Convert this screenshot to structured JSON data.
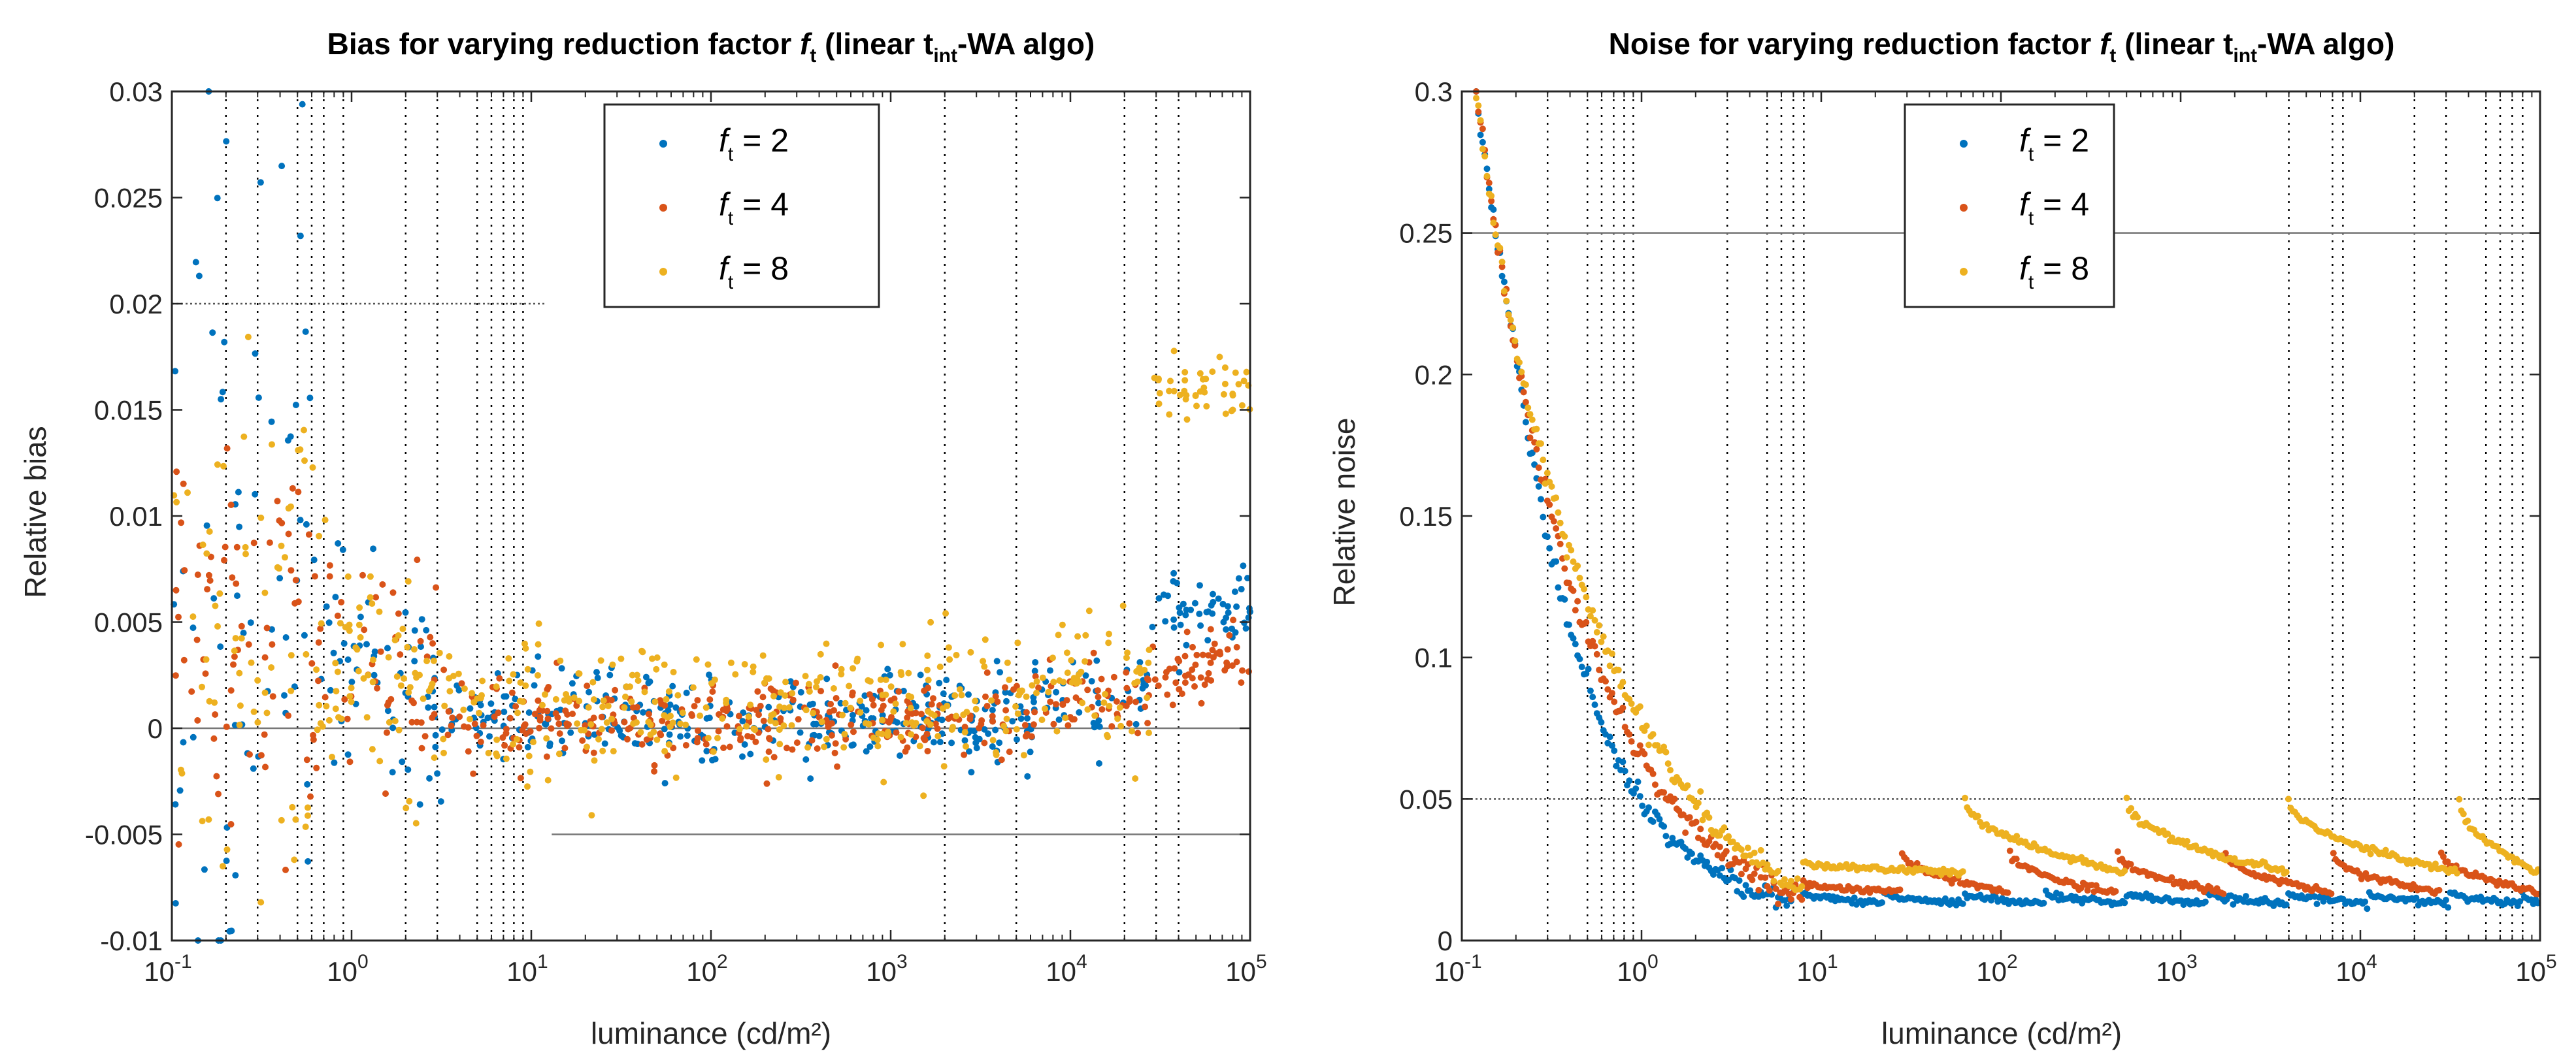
{
  "chart_data": [
    {
      "type": "scatter",
      "title_main": "Bias for varying reduction factor ",
      "title_f": "f",
      "title_f_sub": "t",
      "title_mid": " (linear t",
      "title_int_sub": "int",
      "title_end": "-WA algo)",
      "xlabel": "luminance (cd/m²)",
      "ylabel": "Relative bias",
      "xscale": "log",
      "xlim": [
        0.1,
        100000
      ],
      "ylim": [
        -0.01,
        0.03
      ],
      "x_ticks": [
        0.1,
        1,
        10,
        100,
        1000,
        10000,
        100000
      ],
      "x_tick_labels": [
        "10",
        "10",
        "10",
        "10",
        "10",
        "10",
        "10"
      ],
      "x_tick_exponents": [
        "-1",
        "0",
        "1",
        "2",
        "3",
        "4",
        "5"
      ],
      "y_ticks": [
        -0.01,
        -0.005,
        0,
        0.005,
        0.01,
        0.015,
        0.02,
        0.025,
        0.03
      ],
      "y_tick_labels": [
        "-0.01",
        "-0.005",
        "0",
        "0.005",
        "0.01",
        "0.015",
        "0.02",
        "0.025",
        "0.03"
      ],
      "vlines": [
        0.2,
        0.3,
        0.5,
        0.6,
        0.7,
        0.9,
        2,
        3,
        5,
        6,
        7,
        8,
        9,
        2000,
        5000,
        20000,
        30000,
        40000
      ],
      "hlines": [
        {
          "y": 0.02,
          "x_from": 0.1,
          "x_to": 12,
          "style": "dotted"
        },
        {
          "y": 0,
          "x_from": 0.1,
          "x_to": 100000,
          "style": "solid"
        },
        {
          "y": -0.005,
          "x_from": 13,
          "x_to": 100000,
          "style": "solid"
        }
      ],
      "legend_position": "top-center",
      "series": [
        {
          "name": "f_t = 2",
          "label_f": "f",
          "label_sub": "t",
          "label_rest": " = 2",
          "color": "#0072BD",
          "plateau_value": 0.0055
        },
        {
          "name": "f_t = 4",
          "label_f": "f",
          "label_sub": "t",
          "label_rest": " = 4",
          "color": "#D95319",
          "plateau_value": 0.003
        },
        {
          "name": "f_t = 8",
          "label_f": "f",
          "label_sub": "t",
          "label_rest": " = 8",
          "color": "#EDB120",
          "plateau_value": 0.016
        }
      ]
    },
    {
      "type": "scatter",
      "title_main": "Noise for varying reduction factor ",
      "title_f": "f",
      "title_f_sub": "t",
      "title_mid": " (linear t",
      "title_int_sub": "int",
      "title_end": "-WA algo)",
      "xlabel": "luminance (cd/m²)",
      "ylabel": "Relative noise",
      "xscale": "log",
      "xlim": [
        0.1,
        100000
      ],
      "ylim": [
        0,
        0.3
      ],
      "x_ticks": [
        0.1,
        1,
        10,
        100,
        1000,
        10000,
        100000
      ],
      "x_tick_labels": [
        "10",
        "10",
        "10",
        "10",
        "10",
        "10",
        "10"
      ],
      "x_tick_exponents": [
        "-1",
        "0",
        "1",
        "2",
        "3",
        "4",
        "5"
      ],
      "y_ticks": [
        0,
        0.05,
        0.1,
        0.15,
        0.2,
        0.25,
        0.3
      ],
      "y_tick_labels": [
        "0",
        "0.05",
        "0.1",
        "0.15",
        "0.2",
        "0.25",
        "0.3"
      ],
      "vlines": [
        0.3,
        0.5,
        0.6,
        0.7,
        0.8,
        0.9,
        3,
        5,
        6,
        7,
        8,
        4000,
        7000,
        8000,
        20000,
        30000,
        50000,
        60000,
        70000,
        80000
      ],
      "hlines": [
        {
          "y": 0.25,
          "x_from": 0.1,
          "x_to": 100000,
          "style": "solid"
        },
        {
          "y": 0.05,
          "x_from": 0.1,
          "x_to": 100000,
          "style": "dotted"
        }
      ],
      "legend_position": "top-center",
      "series": [
        {
          "name": "f_t = 2",
          "label_f": "f",
          "label_sub": "t",
          "label_rest": " = 2",
          "color": "#0072BD",
          "sawtooth_start": 0.017,
          "sawtooth_end": 0.013
        },
        {
          "name": "f_t = 4",
          "label_f": "f",
          "label_sub": "t",
          "label_rest": " = 4",
          "color": "#D95319",
          "sawtooth_start": 0.031,
          "sawtooth_end": 0.017
        },
        {
          "name": "f_t = 8",
          "label_f": "f",
          "label_sub": "t",
          "label_rest": " = 8",
          "color": "#EDB120",
          "sawtooth_start": 0.05,
          "sawtooth_end": 0.024
        }
      ]
    }
  ]
}
